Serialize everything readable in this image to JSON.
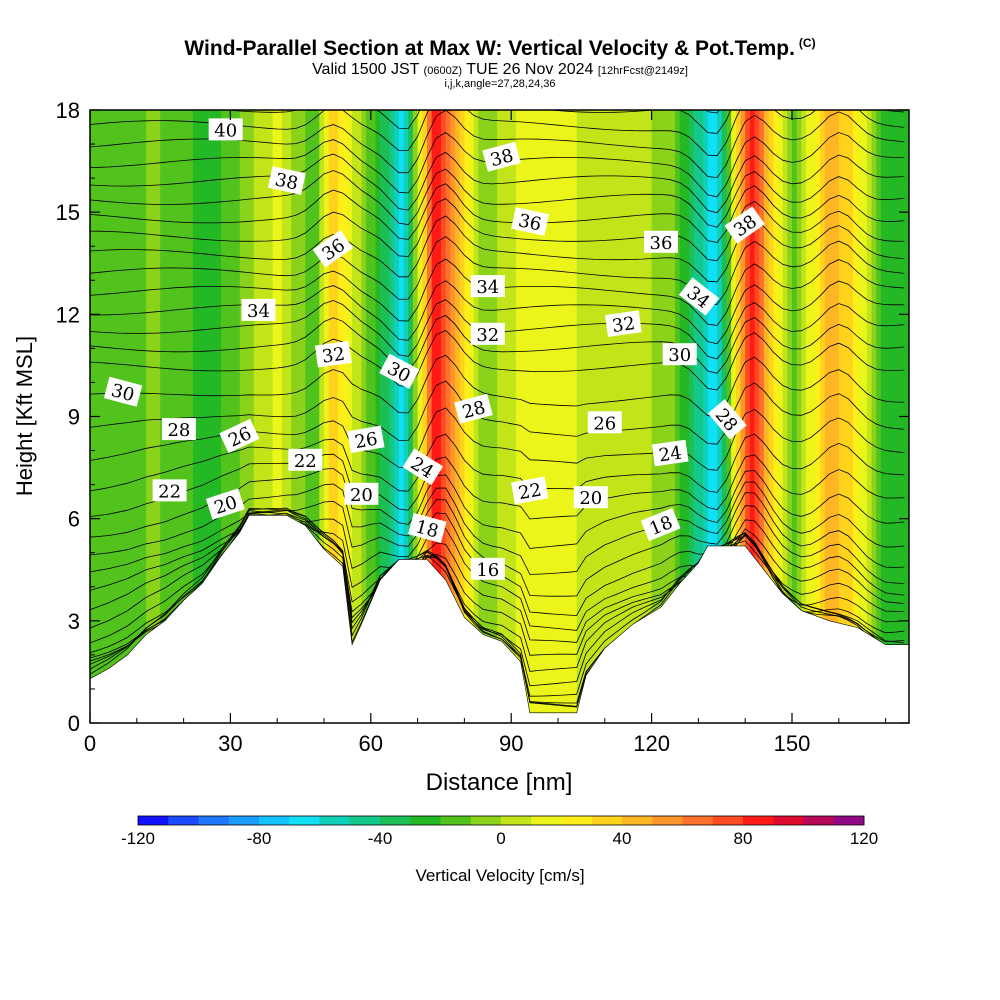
{
  "header": {
    "title": "Wind-Parallel Section at Max W: Vertical Velocity & Pot.Temp.",
    "copyright_mark": "(C)",
    "valid_prefix": "Valid 1500 JST",
    "valid_utc": "(0600Z)",
    "valid_date": "TUE 26 Nov 2024",
    "forecast": "[12hrFcst@2149z]",
    "grid_info": "i,j,k,angle=27,28,24,36"
  },
  "chart_data": {
    "type": "heatmap",
    "xlabel": "Distance [nm]",
    "ylabel": "Height [Kft MSL]",
    "xlim": [
      0,
      175
    ],
    "ylim": [
      0,
      18
    ],
    "x_ticks": [
      0,
      30,
      60,
      90,
      120,
      150
    ],
    "y_ticks": [
      0,
      3,
      6,
      9,
      12,
      15,
      18
    ],
    "colorbar": {
      "label": "Vertical Velocity [cm/s]",
      "range": [
        -120,
        120
      ],
      "tick_labels": [
        "-120",
        "-80",
        "-40",
        "0",
        "40",
        "80",
        "120"
      ],
      "tick_values": [
        -120,
        -80,
        -40,
        0,
        40,
        80,
        120
      ],
      "colors": [
        "#1212ff",
        "#1c4aff",
        "#2077ff",
        "#1a9cff",
        "#12c3ff",
        "#0fe0f5",
        "#0fd0b8",
        "#14c88a",
        "#1cbf55",
        "#25b825",
        "#52c31c",
        "#8bd21a",
        "#c2e51a",
        "#ecf51a",
        "#ffee18",
        "#ffd21c",
        "#ffb624",
        "#ff962a",
        "#ff722c",
        "#ff4a22",
        "#ff1a16",
        "#e00a2e",
        "#b8085a",
        "#900a86"
      ]
    },
    "velocity_columns": [
      {
        "x": 2,
        "w": -20
      },
      {
        "x": 14,
        "w": -8
      },
      {
        "x": 26,
        "w": -25
      },
      {
        "x": 40,
        "w": 12
      },
      {
        "x": 48,
        "w": -18
      },
      {
        "x": 52,
        "w": 40
      },
      {
        "x": 63,
        "w": -35
      },
      {
        "x": 67,
        "w": -65
      },
      {
        "x": 71,
        "w": 25
      },
      {
        "x": 74,
        "w": 95
      },
      {
        "x": 77,
        "w": 55
      },
      {
        "x": 84,
        "w": -10
      },
      {
        "x": 94,
        "w": 20
      },
      {
        "x": 104,
        "w": 10
      },
      {
        "x": 115,
        "w": 5
      },
      {
        "x": 124,
        "w": -5
      },
      {
        "x": 134,
        "w": -70
      },
      {
        "x": 141,
        "w": 90
      },
      {
        "x": 150,
        "w": -15
      },
      {
        "x": 158,
        "w": 45
      },
      {
        "x": 163,
        "w": 30
      },
      {
        "x": 170,
        "w": -25
      }
    ],
    "terrain_kft": [
      [
        0,
        1.3
      ],
      [
        4,
        1.6
      ],
      [
        8,
        2.0
      ],
      [
        12,
        2.6
      ],
      [
        16,
        3.0
      ],
      [
        20,
        3.6
      ],
      [
        24,
        4.1
      ],
      [
        28,
        4.9
      ],
      [
        32,
        5.6
      ],
      [
        34,
        6.1
      ],
      [
        42,
        6.1
      ],
      [
        46,
        5.8
      ],
      [
        50,
        5.1
      ],
      [
        54,
        4.6
      ],
      [
        56,
        2.3
      ],
      [
        58,
        2.9
      ],
      [
        62,
        4.2
      ],
      [
        66,
        4.8
      ],
      [
        72,
        4.8
      ],
      [
        76,
        4.2
      ],
      [
        80,
        3.1
      ],
      [
        84,
        2.6
      ],
      [
        88,
        2.4
      ],
      [
        92,
        1.8
      ],
      [
        94,
        0.3
      ],
      [
        104,
        0.3
      ],
      [
        106,
        1.4
      ],
      [
        110,
        2.2
      ],
      [
        116,
        2.9
      ],
      [
        122,
        3.4
      ],
      [
        126,
        4.1
      ],
      [
        130,
        4.7
      ],
      [
        132,
        5.2
      ],
      [
        140,
        5.2
      ],
      [
        144,
        4.5
      ],
      [
        148,
        3.8
      ],
      [
        152,
        3.3
      ],
      [
        158,
        3.0
      ],
      [
        164,
        2.8
      ],
      [
        170,
        2.3
      ],
      [
        175,
        2.3
      ]
    ],
    "isentrope_labels": [
      {
        "text": "40",
        "x": 29,
        "y": 17.4,
        "angle": 0
      },
      {
        "text": "38",
        "x": 42,
        "y": 15.9,
        "angle": 12
      },
      {
        "text": "36",
        "x": 52,
        "y": 13.9,
        "angle": -35
      },
      {
        "text": "34",
        "x": 36,
        "y": 12.1,
        "angle": 0
      },
      {
        "text": "32",
        "x": 52,
        "y": 10.8,
        "angle": -8
      },
      {
        "text": "30",
        "x": 7,
        "y": 9.7,
        "angle": 15
      },
      {
        "text": "28",
        "x": 19,
        "y": 8.6,
        "angle": 0
      },
      {
        "text": "26",
        "x": 32,
        "y": 8.4,
        "angle": -25
      },
      {
        "text": "22",
        "x": 46,
        "y": 7.7,
        "angle": 0
      },
      {
        "text": "22",
        "x": 17,
        "y": 6.8,
        "angle": 0
      },
      {
        "text": "20",
        "x": 29,
        "y": 6.4,
        "angle": -18
      },
      {
        "text": "38",
        "x": 88,
        "y": 16.6,
        "angle": -15
      },
      {
        "text": "36",
        "x": 94,
        "y": 14.7,
        "angle": 12
      },
      {
        "text": "34",
        "x": 85,
        "y": 12.8,
        "angle": 0
      },
      {
        "text": "32",
        "x": 85,
        "y": 11.4,
        "angle": 0
      },
      {
        "text": "30",
        "x": 66,
        "y": 10.3,
        "angle": 28
      },
      {
        "text": "28",
        "x": 82,
        "y": 9.2,
        "angle": -15
      },
      {
        "text": "26",
        "x": 59,
        "y": 8.3,
        "angle": -10
      },
      {
        "text": "24",
        "x": 71,
        "y": 7.5,
        "angle": 32
      },
      {
        "text": "20",
        "x": 58,
        "y": 6.7,
        "angle": 0
      },
      {
        "text": "22",
        "x": 94,
        "y": 6.8,
        "angle": -10
      },
      {
        "text": "20",
        "x": 107,
        "y": 6.6,
        "angle": 0
      },
      {
        "text": "18",
        "x": 72,
        "y": 5.7,
        "angle": 15
      },
      {
        "text": "16",
        "x": 85,
        "y": 4.5,
        "angle": 0
      },
      {
        "text": "38",
        "x": 140,
        "y": 14.6,
        "angle": -35
      },
      {
        "text": "36",
        "x": 122,
        "y": 14.1,
        "angle": 0
      },
      {
        "text": "34",
        "x": 130,
        "y": 12.5,
        "angle": 38
      },
      {
        "text": "32",
        "x": 114,
        "y": 11.7,
        "angle": -8
      },
      {
        "text": "30",
        "x": 126,
        "y": 10.8,
        "angle": 0
      },
      {
        "text": "28",
        "x": 136,
        "y": 8.9,
        "angle": 50
      },
      {
        "text": "26",
        "x": 110,
        "y": 8.8,
        "angle": 0
      },
      {
        "text": "24",
        "x": 124,
        "y": 7.9,
        "angle": -8
      },
      {
        "text": "18",
        "x": 122,
        "y": 5.8,
        "angle": -22
      }
    ]
  }
}
